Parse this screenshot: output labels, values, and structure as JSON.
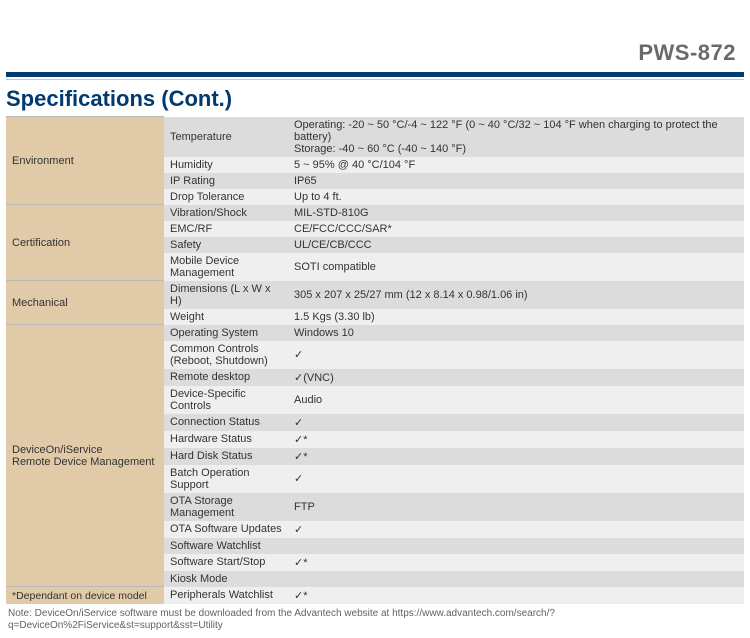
{
  "model": "PWS-872",
  "section_title": "Specifications (Cont.)",
  "groups": [
    {
      "category": "Environment",
      "rows": [
        {
          "sub": "Temperature",
          "val": "Operating: -20 ~ 50 °C/-4 ~ 122 °F (0 ~ 40 °C/32 ~ 104 °F when charging to protect the battery)\nStorage: -40 ~ 60 °C (-40 ~ 140 °F)",
          "stripe": "odd",
          "multiline": true
        },
        {
          "sub": "Humidity",
          "val": "5 ~ 95% @ 40 °C/104 °F",
          "stripe": "even"
        },
        {
          "sub": "IP Rating",
          "val": "IP65",
          "stripe": "odd"
        },
        {
          "sub": "Drop Tolerance",
          "val": "Up to 4 ft.",
          "stripe": "even"
        }
      ]
    },
    {
      "category": "Certification",
      "rows": [
        {
          "sub": "Vibration/Shock",
          "val": "MIL-STD-810G",
          "stripe": "odd"
        },
        {
          "sub": "EMC/RF",
          "val": "CE/FCC/CCC/SAR*",
          "stripe": "even"
        },
        {
          "sub": "Safety",
          "val": "UL/CE/CB/CCC",
          "stripe": "odd"
        },
        {
          "sub": "Mobile Device Management",
          "val": "SOTI compatible",
          "stripe": "even"
        }
      ]
    },
    {
      "category": "Mechanical",
      "rows": [
        {
          "sub": "Dimensions (L x W x H)",
          "val": "305 x 207 x 25/27 mm (12 x 8.14 x 0.98/1.06 in)",
          "stripe": "odd"
        },
        {
          "sub": "Weight",
          "val": "1.5 Kgs (3.30 lb)",
          "stripe": "even"
        }
      ]
    },
    {
      "category": "DeviceOn/iService\nRemote Device Management",
      "footnote": "*Dependant on device model",
      "rows": [
        {
          "sub": "Operating System",
          "val": "Windows 10",
          "stripe": "odd"
        },
        {
          "sub": "Common Controls\n(Reboot, Shutdown)",
          "val": "✓",
          "stripe": "even",
          "multiline": true
        },
        {
          "sub": "Remote desktop",
          "val": "✓(VNC)",
          "stripe": "odd"
        },
        {
          "sub": "Device-Specific Controls",
          "val": "Audio",
          "stripe": "even"
        },
        {
          "sub": "Connection Status",
          "val": "✓",
          "stripe": "odd"
        },
        {
          "sub": "Hardware Status",
          "val": "✓*",
          "stripe": "even"
        },
        {
          "sub": "Hard Disk Status",
          "val": "✓*",
          "stripe": "odd"
        },
        {
          "sub": "Batch Operation Support",
          "val": "✓",
          "stripe": "even"
        },
        {
          "sub": "OTA Storage Management",
          "val": "FTP",
          "stripe": "odd"
        },
        {
          "sub": "OTA Software Updates",
          "val": "✓",
          "stripe": "even"
        },
        {
          "sub": "Software Watchlist",
          "val": "",
          "stripe": "odd"
        },
        {
          "sub": "Software Start/Stop",
          "val": "✓*",
          "stripe": "even"
        },
        {
          "sub": "Kiosk Mode",
          "val": "",
          "stripe": "odd"
        },
        {
          "sub": "Peripherals Watchlist",
          "val": "✓*",
          "stripe": "even"
        }
      ]
    }
  ],
  "page_note": "Note: DeviceOn/iService software must be downloaded from the Advantech website at https://www.advantech.com/search/?q=DeviceOn%2FiService&st=support&sst=Utility"
}
